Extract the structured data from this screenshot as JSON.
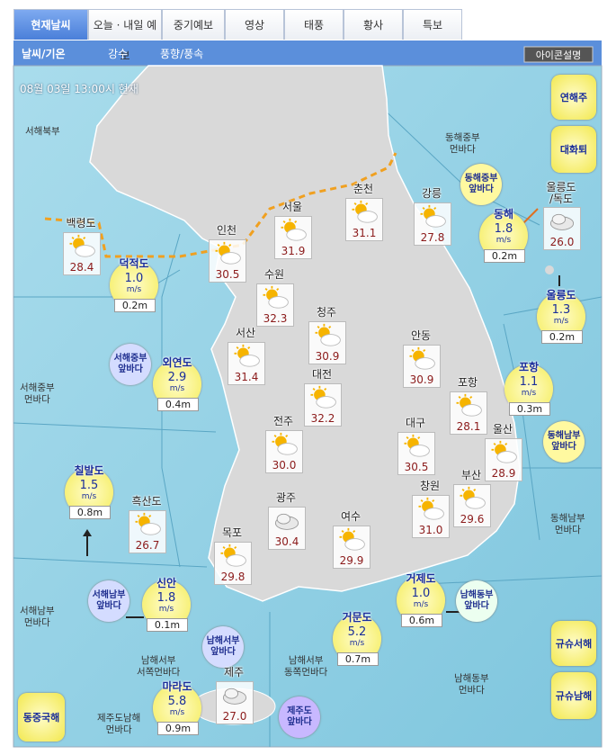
{
  "tabs": [
    "현재날씨",
    "오늘 · 내일 예보",
    "중기예보",
    "영상",
    "태풍",
    "황사",
    "특보"
  ],
  "subtabs": [
    "날씨/기온",
    "강수",
    "풍향/풍속"
  ],
  "icon_button": "아이콘설명",
  "timestamp": "08월 03일 13:00시 현재",
  "side_buttons": [
    "연해주",
    "대화퇴",
    "규슈서해",
    "규슈남해",
    "동중국해"
  ],
  "cities": [
    {
      "name": "백령도",
      "temp": "28.4",
      "icon": "partly-sunny"
    },
    {
      "name": "인천",
      "temp": "30.5",
      "icon": "partly-sunny"
    },
    {
      "name": "서울",
      "temp": "31.9",
      "icon": "partly-sunny"
    },
    {
      "name": "춘천",
      "temp": "31.1",
      "icon": "sunny-cloud"
    },
    {
      "name": "강릉",
      "temp": "27.8",
      "icon": "partly-sunny"
    },
    {
      "name": "울릉도\n/독도",
      "temp": "26.0",
      "icon": "cloudy"
    },
    {
      "name": "수원",
      "temp": "32.3",
      "icon": "partly-sunny"
    },
    {
      "name": "청주",
      "temp": "30.9",
      "icon": "partly-sunny"
    },
    {
      "name": "서산",
      "temp": "31.4",
      "icon": "partly-sunny"
    },
    {
      "name": "대전",
      "temp": "32.2",
      "icon": "partly-sunny"
    },
    {
      "name": "안동",
      "temp": "30.9",
      "icon": "partly-sunny"
    },
    {
      "name": "포항",
      "temp": "28.1",
      "icon": "partly-sunny"
    },
    {
      "name": "전주",
      "temp": "30.0",
      "icon": "partly-sunny"
    },
    {
      "name": "대구",
      "temp": "30.5",
      "icon": "partly-sunny"
    },
    {
      "name": "울산",
      "temp": "28.9",
      "icon": "partly-sunny"
    },
    {
      "name": "부산",
      "temp": "29.6",
      "icon": "partly-sunny"
    },
    {
      "name": "창원",
      "temp": "31.0",
      "icon": "partly-sunny"
    },
    {
      "name": "흑산도",
      "temp": "26.7",
      "icon": "partly-sunny"
    },
    {
      "name": "광주",
      "temp": "30.4",
      "icon": "cloudy"
    },
    {
      "name": "여수",
      "temp": "29.9",
      "icon": "partly-sunny"
    },
    {
      "name": "목포",
      "temp": "29.8",
      "icon": "partly-sunny"
    },
    {
      "name": "제주",
      "temp": "27.0",
      "icon": "cloudy"
    }
  ],
  "buoys": [
    {
      "name": "덕적도",
      "wind": "1.0",
      "unit": "m/s",
      "wave": "0.2m"
    },
    {
      "name": "외연도",
      "wind": "2.9",
      "unit": "m/s",
      "wave": "0.4m"
    },
    {
      "name": "칠발도",
      "wind": "1.5",
      "unit": "m/s",
      "wave": "0.8m"
    },
    {
      "name": "신안",
      "wind": "1.8",
      "unit": "m/s",
      "wave": "0.1m"
    },
    {
      "name": "마라도",
      "wind": "5.8",
      "unit": "m/s",
      "wave": "0.9m"
    },
    {
      "name": "동해",
      "wind": "1.8",
      "unit": "m/s",
      "wave": "0.2m"
    },
    {
      "name": "울릉도",
      "wind": "1.3",
      "unit": "m/s",
      "wave": "0.2m"
    },
    {
      "name": "포항",
      "wind": "1.1",
      "unit": "m/s",
      "wave": "0.3m"
    },
    {
      "name": "거제도",
      "wind": "1.0",
      "unit": "m/s",
      "wave": "0.6m"
    },
    {
      "name": "거문도",
      "wind": "5.2",
      "unit": "m/s",
      "wave": "0.7m"
    }
  ],
  "sea_zones": [
    "서해북부",
    "동해중부\n먼바다",
    "서해중부\n먼바다",
    "동해남부\n먼바다",
    "서해남부\n먼바다",
    "남해서부\n서쪽먼바다",
    "남해서부\n동쪽먼바다",
    "남해동부\n먼바다",
    "제주도남해\n먼바다"
  ],
  "sea_bubbles": [
    "동해중부\n앞바다",
    "서해중부\n앞바다",
    "동해남부\n앞바다",
    "서해남부\n앞바다",
    "남해서부\n앞바다",
    "남해동부\n앞바다",
    "제주도\n앞바다"
  ]
}
